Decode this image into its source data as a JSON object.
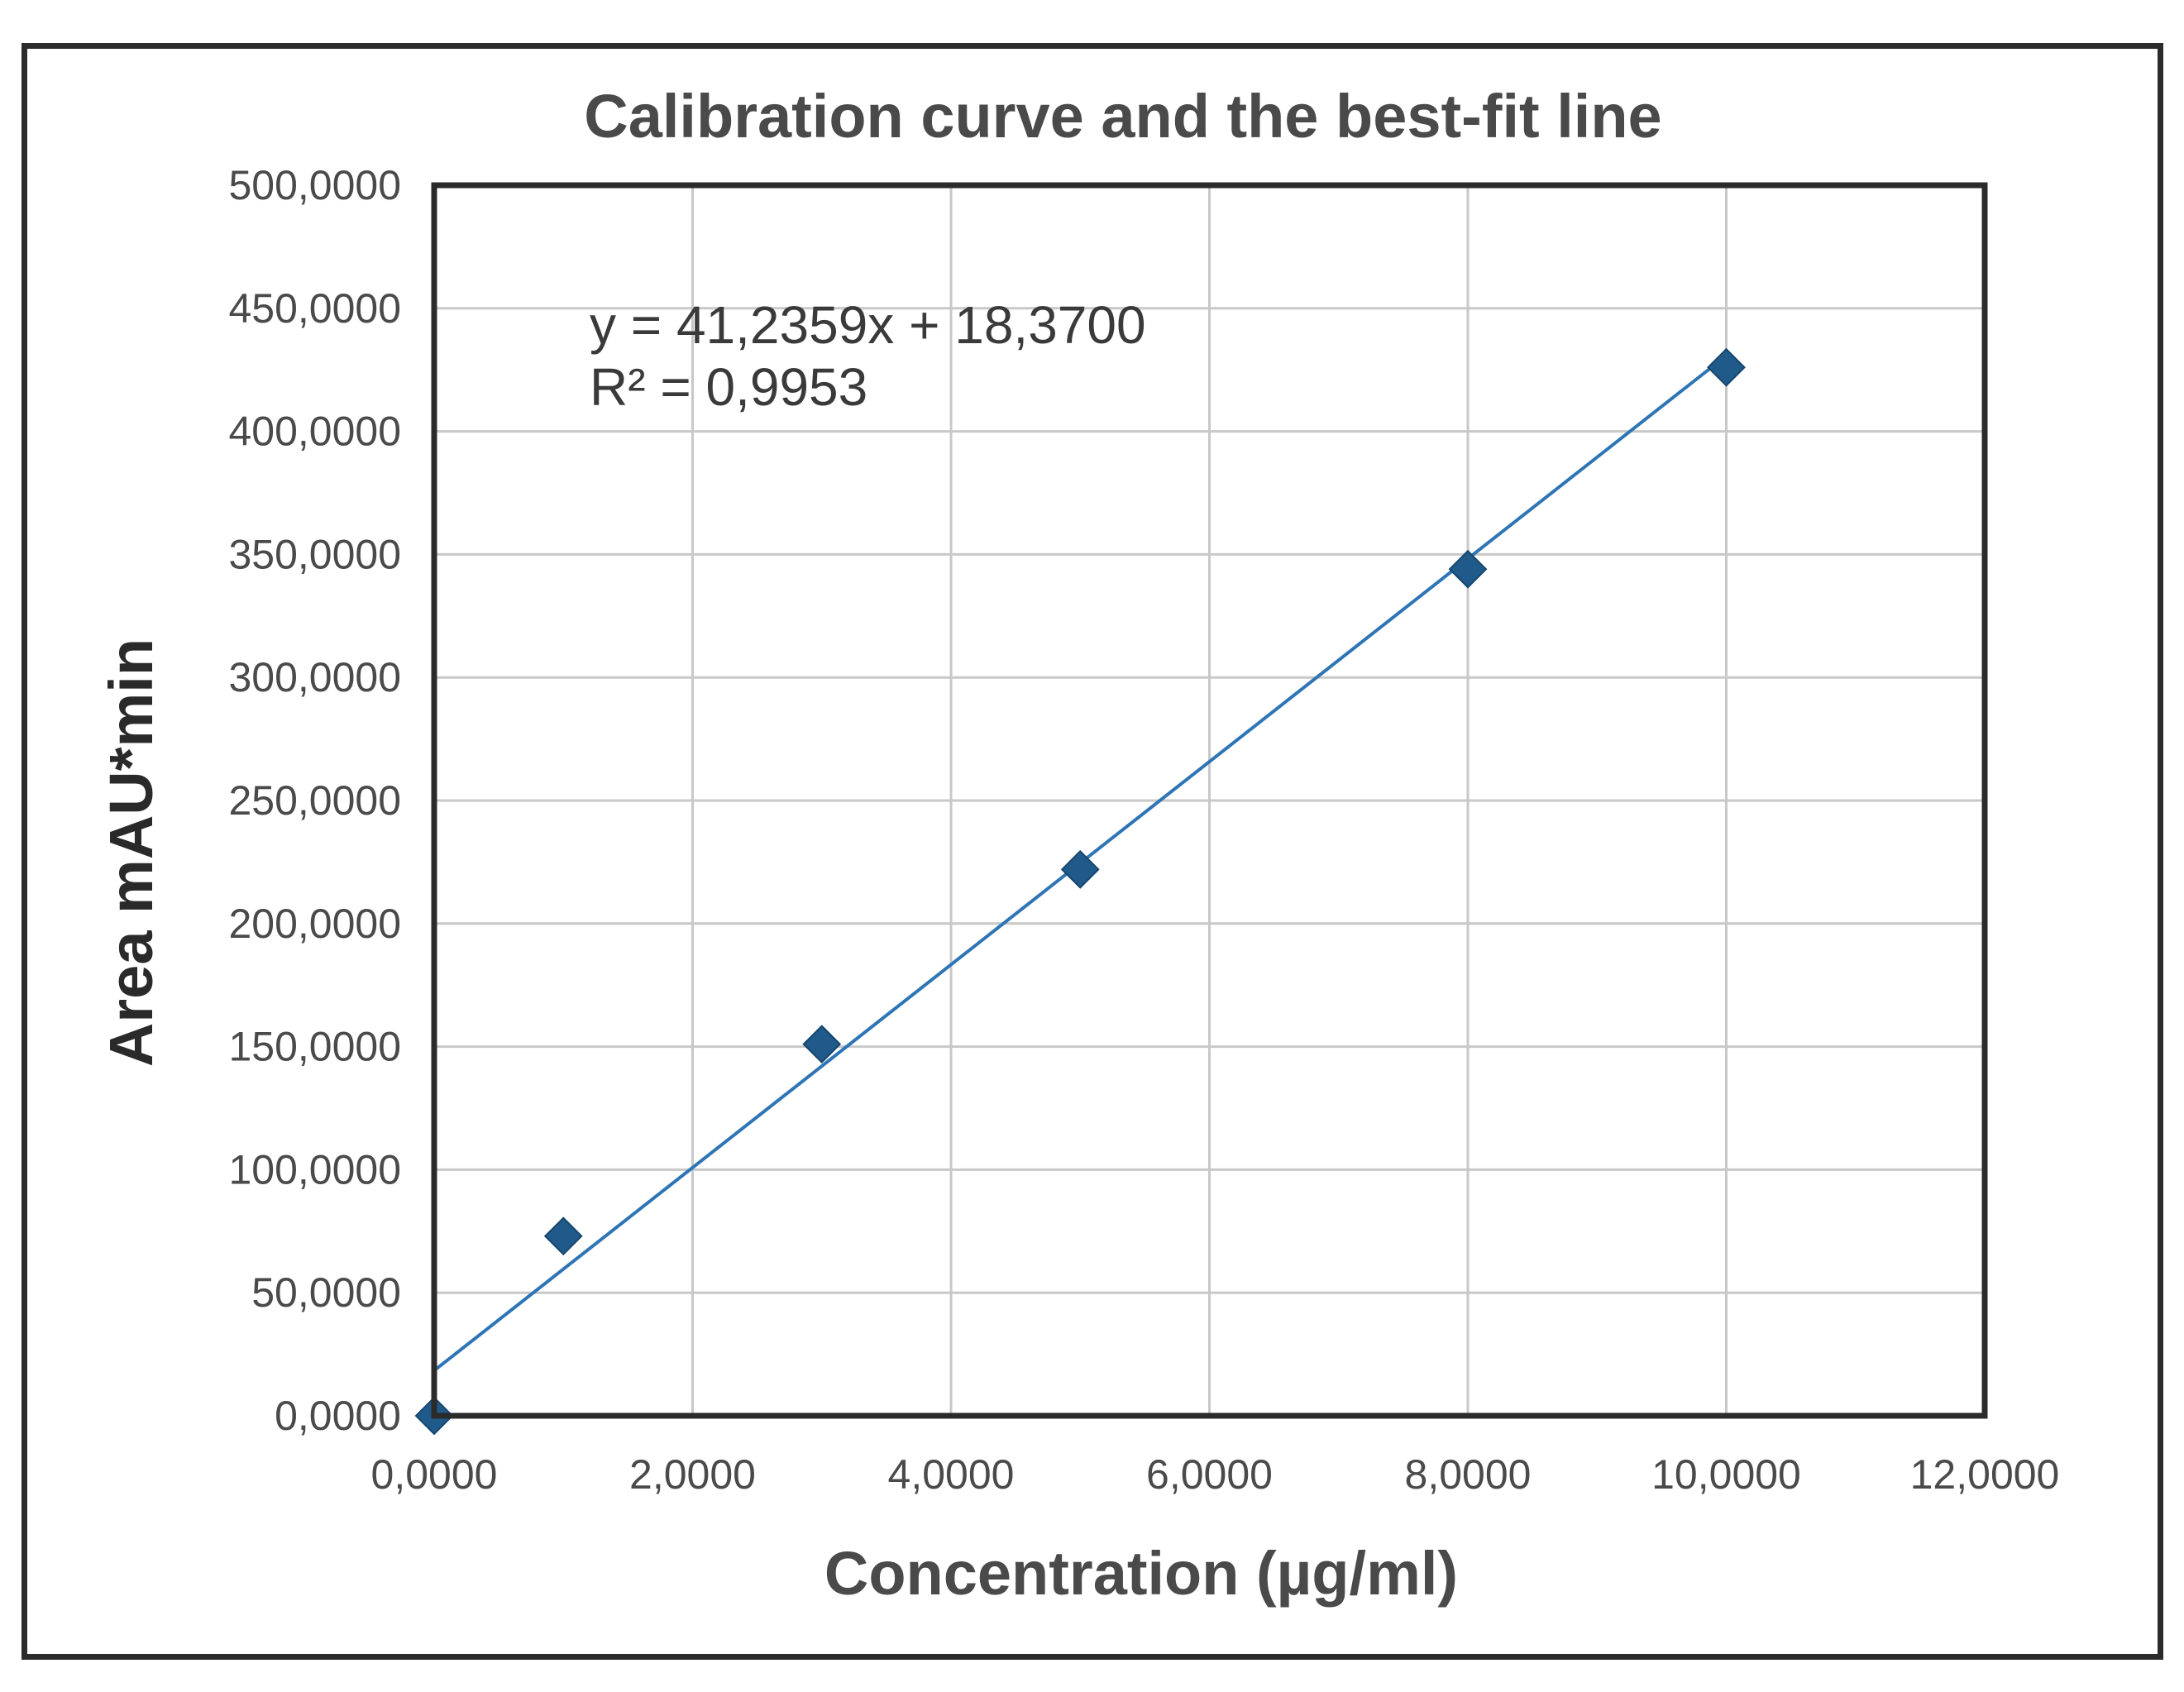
{
  "chart_data": {
    "type": "scatter",
    "title": "Calibration curve and the best-fit line",
    "xlabel": "Concentration (µg/ml)",
    "ylabel": "Area mAU*min",
    "xlim": [
      0,
      12
    ],
    "ylim": [
      0,
      500
    ],
    "x_ticks": [
      "0,0000",
      "2,0000",
      "4,0000",
      "6,0000",
      "8,0000",
      "10,0000",
      "12,0000"
    ],
    "y_ticks": [
      "0,0000",
      "50,0000",
      "100,0000",
      "150,0000",
      "200,0000",
      "250,0000",
      "300,0000",
      "350,0000",
      "400,0000",
      "450,0000",
      "500,0000"
    ],
    "grid": true,
    "legend": "none",
    "series": [
      {
        "x": [
          0,
          1,
          3,
          5,
          8,
          10
        ],
        "y": [
          0,
          73,
          151,
          222,
          344,
          426
        ],
        "marker": "diamond",
        "color": "#1f5a8a"
      }
    ],
    "trendline": {
      "type": "linear",
      "slope": 41.2359,
      "intercept": 18.37,
      "color": "#2e75b6",
      "equation": "y = 41,2359x + 18,3700",
      "r2_label": "R² = 0,9953"
    }
  }
}
